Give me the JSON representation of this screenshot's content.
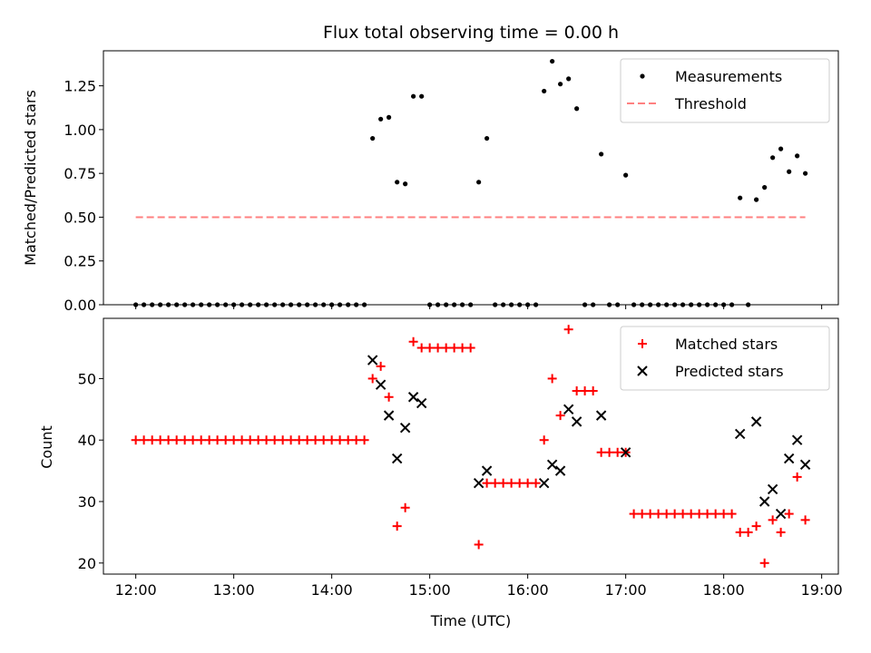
{
  "chart_data": [
    {
      "type": "scatter",
      "title": "Flux total observing time = 0.00 h",
      "xlabel": "",
      "ylabel": "Matched/Predicted stars",
      "xlim": [
        11.67,
        19.17
      ],
      "ylim": [
        0,
        1.45
      ],
      "xticks": [
        12,
        13,
        14,
        15,
        16,
        17,
        18,
        19
      ],
      "xtick_labels": [
        "",
        "",
        "",
        "",
        "",
        "",
        "",
        ""
      ],
      "yticks": [
        0,
        0.25,
        0.5,
        0.75,
        1.0,
        1.25
      ],
      "ytick_labels": [
        "0.00",
        "0.25",
        "0.50",
        "0.75",
        "1.00",
        "1.25"
      ],
      "legend_position": "upper right",
      "series": [
        {
          "name": "Measurements",
          "marker": "dot",
          "color": "#000000",
          "points": [
            [
              12.0,
              0
            ],
            [
              12.083,
              0
            ],
            [
              12.167,
              0
            ],
            [
              12.25,
              0
            ],
            [
              12.333,
              0
            ],
            [
              12.417,
              0
            ],
            [
              12.5,
              0
            ],
            [
              12.583,
              0
            ],
            [
              12.667,
              0
            ],
            [
              12.75,
              0
            ],
            [
              12.833,
              0
            ],
            [
              12.917,
              0
            ],
            [
              13.0,
              0
            ],
            [
              13.083,
              0
            ],
            [
              13.167,
              0
            ],
            [
              13.25,
              0
            ],
            [
              13.333,
              0
            ],
            [
              13.417,
              0
            ],
            [
              13.5,
              0
            ],
            [
              13.583,
              0
            ],
            [
              13.667,
              0
            ],
            [
              13.75,
              0
            ],
            [
              13.833,
              0
            ],
            [
              13.917,
              0
            ],
            [
              14.0,
              0
            ],
            [
              14.083,
              0
            ],
            [
              14.167,
              0
            ],
            [
              14.25,
              0
            ],
            [
              14.333,
              0
            ],
            [
              14.417,
              0.95
            ],
            [
              14.5,
              1.06
            ],
            [
              14.583,
              1.07
            ],
            [
              14.667,
              0.7
            ],
            [
              14.75,
              0.69
            ],
            [
              14.833,
              1.19
            ],
            [
              14.917,
              1.19
            ],
            [
              15.0,
              0
            ],
            [
              15.083,
              0
            ],
            [
              15.167,
              0
            ],
            [
              15.25,
              0
            ],
            [
              15.333,
              0
            ],
            [
              15.417,
              0
            ],
            [
              15.5,
              0.7
            ],
            [
              15.583,
              0.95
            ],
            [
              15.667,
              0
            ],
            [
              15.75,
              0
            ],
            [
              15.833,
              0
            ],
            [
              15.917,
              0
            ],
            [
              16.0,
              0
            ],
            [
              16.083,
              0
            ],
            [
              16.167,
              1.22
            ],
            [
              16.25,
              1.39
            ],
            [
              16.333,
              1.26
            ],
            [
              16.417,
              1.29
            ],
            [
              16.5,
              1.12
            ],
            [
              16.583,
              0
            ],
            [
              16.667,
              0
            ],
            [
              16.75,
              0.86
            ],
            [
              16.833,
              0
            ],
            [
              16.917,
              0
            ],
            [
              17.0,
              0.74
            ],
            [
              17.083,
              0
            ],
            [
              17.167,
              0
            ],
            [
              17.25,
              0
            ],
            [
              17.333,
              0
            ],
            [
              17.417,
              0
            ],
            [
              17.5,
              0
            ],
            [
              17.583,
              0
            ],
            [
              17.667,
              0
            ],
            [
              17.75,
              0
            ],
            [
              17.833,
              0
            ],
            [
              17.917,
              0
            ],
            [
              18.0,
              0
            ],
            [
              18.083,
              0
            ],
            [
              18.167,
              0.61
            ],
            [
              18.25,
              0
            ],
            [
              18.333,
              0.6
            ],
            [
              18.417,
              0.67
            ],
            [
              18.5,
              0.84
            ],
            [
              18.583,
              0.89
            ],
            [
              18.667,
              0.76
            ],
            [
              18.75,
              0.85
            ],
            [
              18.833,
              0.75
            ]
          ]
        },
        {
          "name": "Threshold",
          "marker": "dashed-line",
          "color": "#ff8080",
          "points": [
            [
              12.0,
              0.5
            ],
            [
              18.833,
              0.5
            ]
          ]
        }
      ]
    },
    {
      "type": "scatter",
      "title": "",
      "xlabel": "Time (UTC)",
      "ylabel": "Count",
      "xlim": [
        11.67,
        19.17
      ],
      "ylim": [
        18.2,
        59.8
      ],
      "xticks": [
        12,
        13,
        14,
        15,
        16,
        17,
        18,
        19
      ],
      "xtick_labels": [
        "12:00",
        "13:00",
        "14:00",
        "15:00",
        "16:00",
        "17:00",
        "18:00",
        "19:00"
      ],
      "yticks": [
        20,
        30,
        40,
        50
      ],
      "ytick_labels": [
        "20",
        "30",
        "40",
        "50"
      ],
      "legend_position": "upper right",
      "series": [
        {
          "name": "Matched stars",
          "marker": "plus",
          "color": "#ff0000",
          "points": [
            [
              12.0,
              40
            ],
            [
              12.083,
              40
            ],
            [
              12.167,
              40
            ],
            [
              12.25,
              40
            ],
            [
              12.333,
              40
            ],
            [
              12.417,
              40
            ],
            [
              12.5,
              40
            ],
            [
              12.583,
              40
            ],
            [
              12.667,
              40
            ],
            [
              12.75,
              40
            ],
            [
              12.833,
              40
            ],
            [
              12.917,
              40
            ],
            [
              13.0,
              40
            ],
            [
              13.083,
              40
            ],
            [
              13.167,
              40
            ],
            [
              13.25,
              40
            ],
            [
              13.333,
              40
            ],
            [
              13.417,
              40
            ],
            [
              13.5,
              40
            ],
            [
              13.583,
              40
            ],
            [
              13.667,
              40
            ],
            [
              13.75,
              40
            ],
            [
              13.833,
              40
            ],
            [
              13.917,
              40
            ],
            [
              14.0,
              40
            ],
            [
              14.083,
              40
            ],
            [
              14.167,
              40
            ],
            [
              14.25,
              40
            ],
            [
              14.333,
              40
            ],
            [
              14.417,
              50
            ],
            [
              14.5,
              52
            ],
            [
              14.583,
              47
            ],
            [
              14.667,
              26
            ],
            [
              14.75,
              29
            ],
            [
              14.833,
              56
            ],
            [
              14.917,
              55
            ],
            [
              15.0,
              55
            ],
            [
              15.083,
              55
            ],
            [
              15.167,
              55
            ],
            [
              15.25,
              55
            ],
            [
              15.333,
              55
            ],
            [
              15.417,
              55
            ],
            [
              15.5,
              23
            ],
            [
              15.583,
              33
            ],
            [
              15.667,
              33
            ],
            [
              15.75,
              33
            ],
            [
              15.833,
              33
            ],
            [
              15.917,
              33
            ],
            [
              16.0,
              33
            ],
            [
              16.083,
              33
            ],
            [
              16.167,
              40
            ],
            [
              16.25,
              50
            ],
            [
              16.333,
              44
            ],
            [
              16.417,
              58
            ],
            [
              16.5,
              48
            ],
            [
              16.583,
              48
            ],
            [
              16.667,
              48
            ],
            [
              16.75,
              38
            ],
            [
              16.833,
              38
            ],
            [
              16.917,
              38
            ],
            [
              17.0,
              38
            ],
            [
              17.083,
              28
            ],
            [
              17.167,
              28
            ],
            [
              17.25,
              28
            ],
            [
              17.333,
              28
            ],
            [
              17.417,
              28
            ],
            [
              17.5,
              28
            ],
            [
              17.583,
              28
            ],
            [
              17.667,
              28
            ],
            [
              17.75,
              28
            ],
            [
              17.833,
              28
            ],
            [
              17.917,
              28
            ],
            [
              18.0,
              28
            ],
            [
              18.083,
              28
            ],
            [
              18.167,
              25
            ],
            [
              18.25,
              25
            ],
            [
              18.333,
              26
            ],
            [
              18.417,
              20
            ],
            [
              18.5,
              27
            ],
            [
              18.583,
              25
            ],
            [
              18.667,
              28
            ],
            [
              18.75,
              34
            ],
            [
              18.833,
              27
            ]
          ]
        },
        {
          "name": "Predicted stars",
          "marker": "x",
          "color": "#000000",
          "points": [
            [
              14.417,
              53
            ],
            [
              14.5,
              49
            ],
            [
              14.583,
              44
            ],
            [
              14.667,
              37
            ],
            [
              14.75,
              42
            ],
            [
              14.833,
              47
            ],
            [
              14.917,
              46
            ],
            [
              15.5,
              33
            ],
            [
              15.583,
              35
            ],
            [
              16.167,
              33
            ],
            [
              16.25,
              36
            ],
            [
              16.333,
              35
            ],
            [
              16.417,
              45
            ],
            [
              16.5,
              43
            ],
            [
              16.75,
              44
            ],
            [
              17.0,
              38
            ],
            [
              18.167,
              41
            ],
            [
              18.333,
              43
            ],
            [
              18.417,
              30
            ],
            [
              18.5,
              32
            ],
            [
              18.583,
              28
            ],
            [
              18.667,
              37
            ],
            [
              18.75,
              40
            ],
            [
              18.833,
              36
            ]
          ]
        }
      ]
    }
  ]
}
